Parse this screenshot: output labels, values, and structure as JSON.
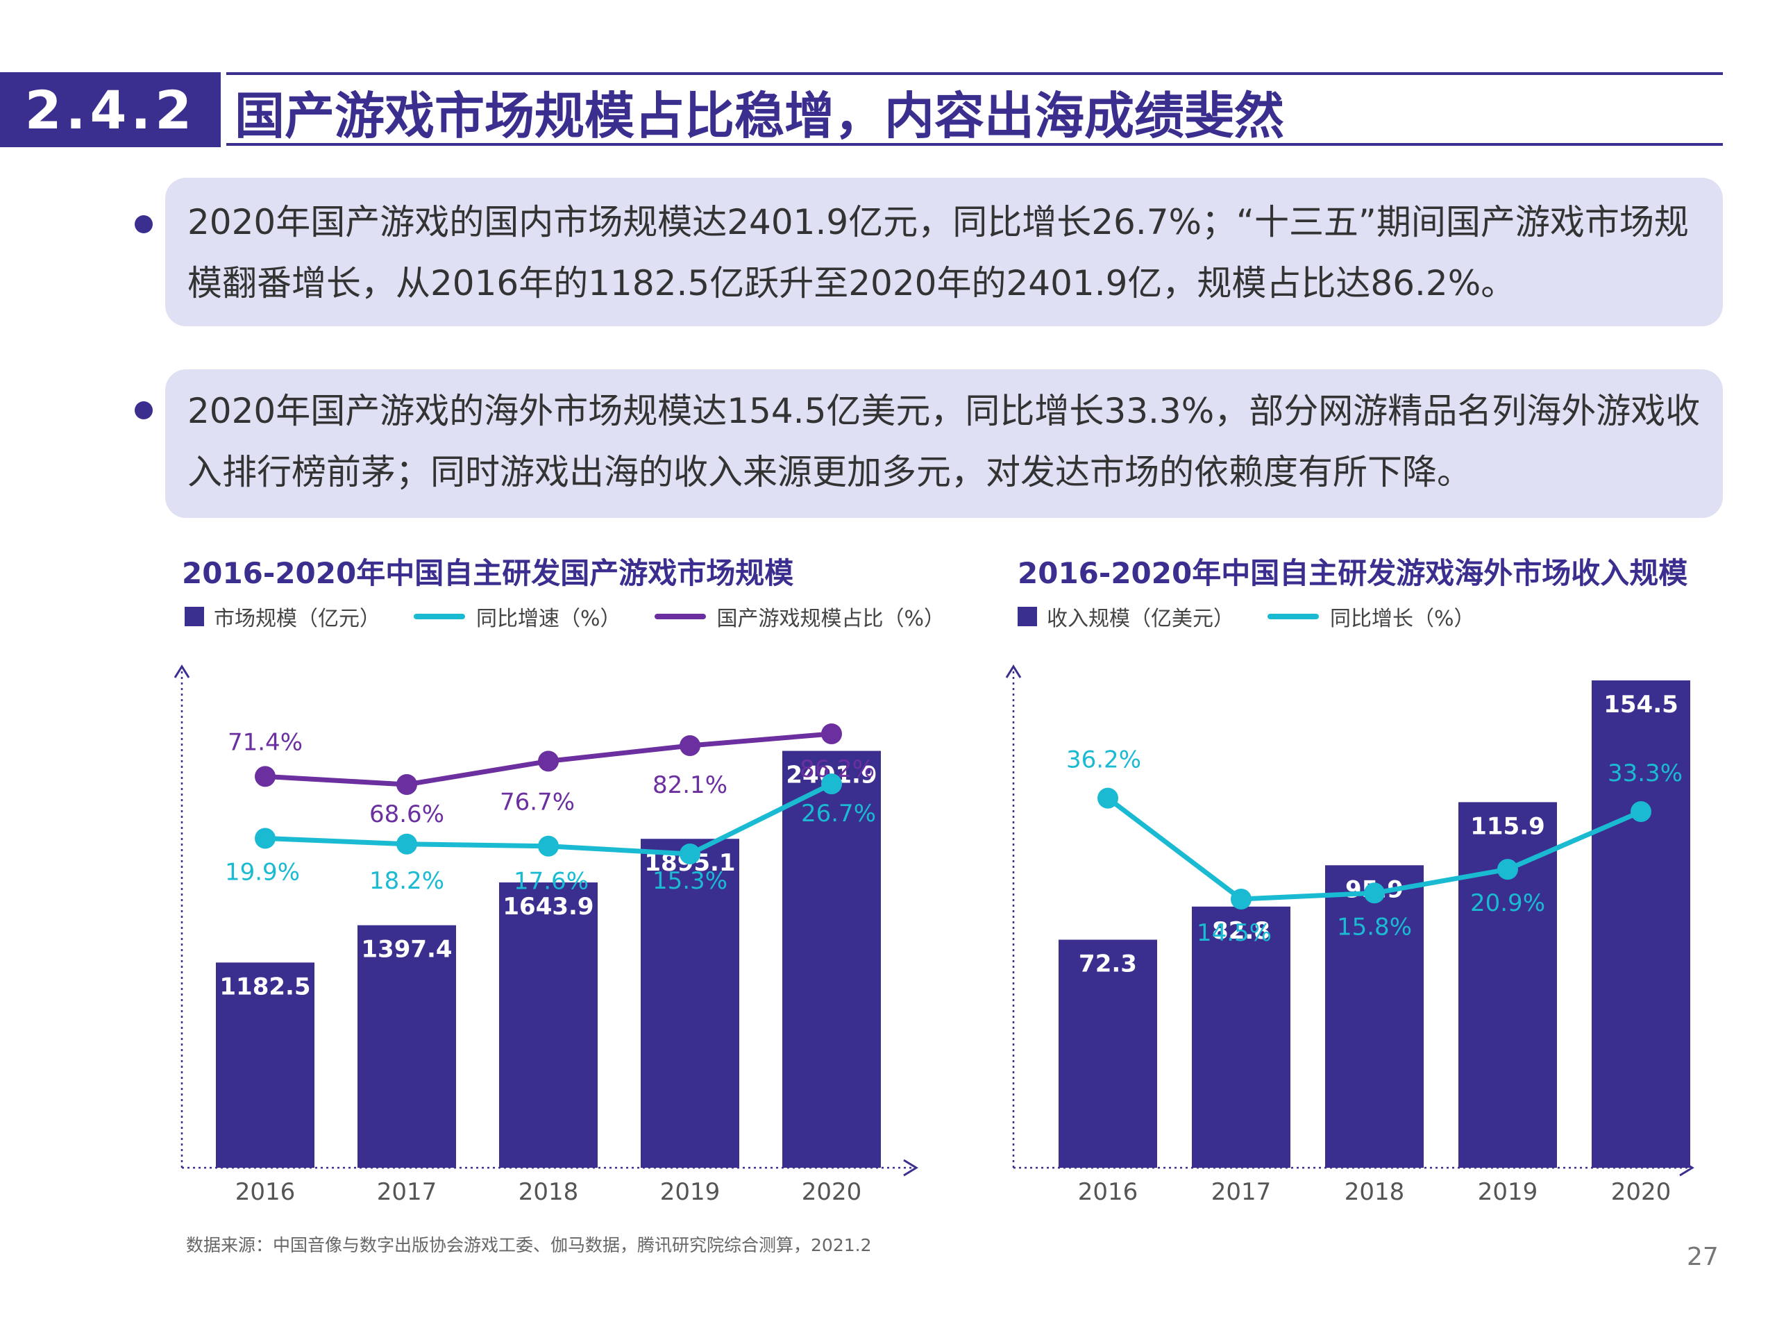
{
  "header": {
    "section_number": "2.4.2",
    "title": "国产游戏市场规模占比稳增，内容出海成绩斐然"
  },
  "bullets": [
    {
      "line1": "2020年国产游戏的国内市场规模达2401.9亿元，同比增长26.7%；“十三五”期间国产游戏市场规",
      "line2": "模翻番增长，从2016年的1182.5亿跃升至2020年的2401.9亿，规模占比达86.2%。"
    },
    {
      "line1": "2020年国产游戏的海外市场规模达154.5亿美元，同比增长33.3%，部分网游精品名列海外游戏收",
      "line2": "入排行榜前茅；同时游戏出海的收入来源更加多元，对发达市场的依赖度有所下降。"
    }
  ],
  "colors": {
    "bar": "#3a2e8f",
    "growth_line": "#1bbad3",
    "share_line": "#6b2fa0",
    "bullet_bg": "#dfe0f3"
  },
  "chart_data": [
    {
      "type": "bar",
      "title": "2016-2020年中国自主研发国产游戏市场规模",
      "categories": [
        "2016",
        "2017",
        "2018",
        "2019",
        "2020"
      ],
      "series": [
        {
          "name": "市场规模（亿元）",
          "type": "bar",
          "values": [
            1182.5,
            1397.4,
            1643.9,
            1895.1,
            2401.9
          ],
          "labels": [
            "1182.5",
            "1397.4",
            "1643.9",
            "1895.1",
            "2401.9"
          ]
        },
        {
          "name": "同比增速（%）",
          "type": "line",
          "values": [
            19.9,
            18.2,
            17.6,
            15.3,
            26.7
          ],
          "labels": [
            "19.9%",
            "18.2%",
            "17.6%",
            "15.3%",
            "26.7%"
          ]
        },
        {
          "name": "国产游戏规模占比（%）",
          "type": "line",
          "values": [
            71.4,
            68.6,
            76.7,
            82.1,
            86.2
          ],
          "labels": [
            "71.4%",
            "68.6%",
            "76.7%",
            "82.1%",
            "86.2%"
          ]
        }
      ],
      "ylim": [
        0,
        4000
      ]
    },
    {
      "type": "bar",
      "title": "2016-2020年中国自主研发游戏海外市场收入规模",
      "categories": [
        "2016",
        "2017",
        "2018",
        "2019",
        "2020"
      ],
      "series": [
        {
          "name": "收入规模（亿美元）",
          "type": "bar",
          "values": [
            72.3,
            82.8,
            95.9,
            115.9,
            154.5
          ],
          "labels": [
            "72.3",
            "82.8",
            "95.9",
            "115.9",
            "154.5"
          ]
        },
        {
          "name": "同比增长（%）",
          "type": "line",
          "values": [
            36.2,
            14.5,
            15.8,
            20.9,
            33.3
          ],
          "labels": [
            "36.2%",
            "14.5%",
            "15.8%",
            "20.9%",
            "33.3%"
          ]
        }
      ],
      "ylim": [
        0,
        230
      ]
    }
  ],
  "footer": {
    "source": "数据来源：中国音像与数字出版协会游戏工委、伽马数据，腾讯研究院综合测算，2021.2",
    "page_number": "27"
  }
}
